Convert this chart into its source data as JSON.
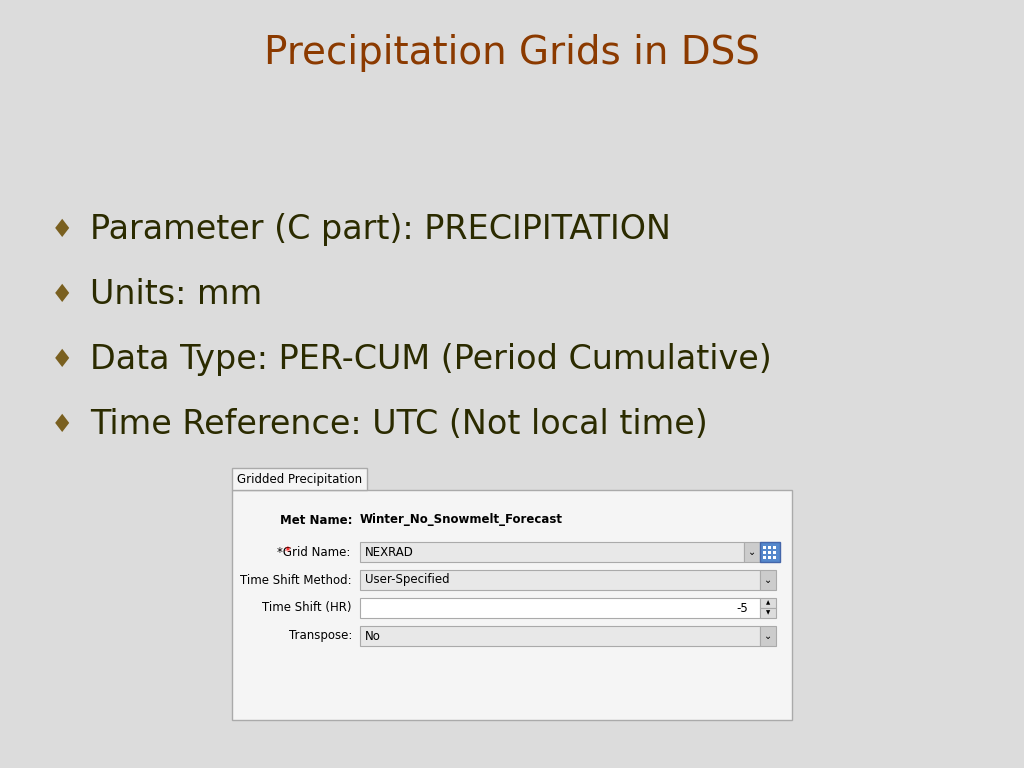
{
  "title": "Precipitation Grids in DSS",
  "title_color": "#8B3A00",
  "background_color": "#DCDCDC",
  "bullet_color": "#7A6020",
  "text_color": "#2B2B00",
  "bullet_points": [
    "Parameter (C part): PRECIPITATION",
    "Units: mm",
    "Data Type: PER-CUM (Period Cumulative)",
    "Time Reference: UTC (Not local time)"
  ],
  "panel_title": "Gridded Precipitation",
  "met_name_label": "Met Name:",
  "met_name_value": "Winter_No_Snowmelt_Forecast",
  "grid_name_label": "*Grid Name:",
  "grid_name_value": "NEXRAD",
  "time_shift_method_label": "Time Shift Method:",
  "time_shift_method_value": "User-Specified",
  "time_shift_hr_label": "Time Shift (HR)",
  "time_shift_hr_value": "-5",
  "transpose_label": "Transpose:",
  "transpose_value": "No"
}
